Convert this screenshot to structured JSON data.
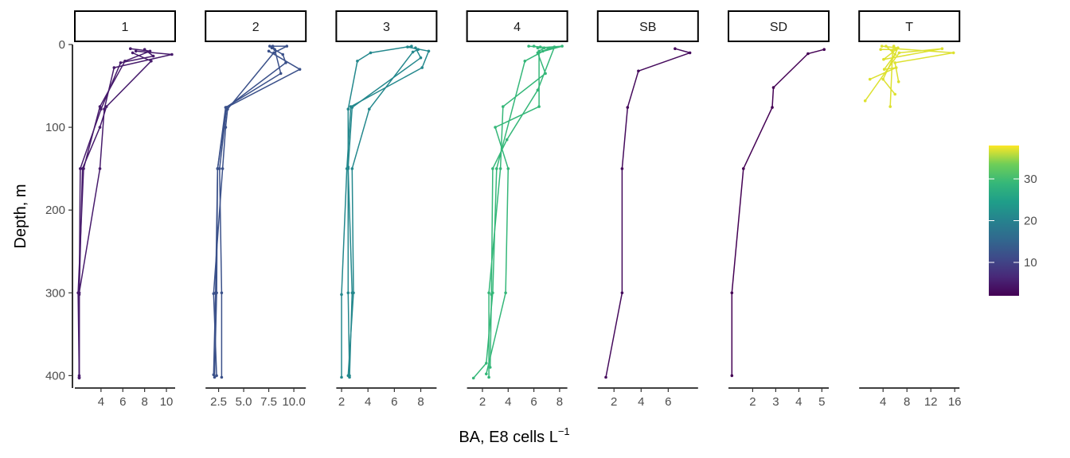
{
  "chart_data": {
    "type": "line",
    "title": "",
    "ylabel": "Depth, m",
    "xlabel": "BA, E8 cells L",
    "xlabel_superscript": "−1",
    "y_reversed": true,
    "ylim": [
      0,
      415
    ],
    "y_ticks": [
      0,
      100,
      200,
      300,
      400
    ],
    "grid": false,
    "color_scale": {
      "palette": "viridis",
      "min": 2,
      "max": 38,
      "ticks": [
        10,
        20,
        30
      ],
      "position": "right"
    },
    "panels": [
      {
        "label": "1",
        "xlim": [
          1.6,
          10.8
        ],
        "x_ticks": [
          4,
          6,
          8,
          10
        ],
        "series": [
          {
            "color_value": 5,
            "points": [
              [
                6.7,
                5
              ],
              [
                8.5,
                8
              ],
              [
                6.2,
                20
              ],
              [
                3.9,
                75
              ],
              [
                2.4,
                150
              ],
              [
                1.9,
                300
              ],
              [
                2.0,
                403
              ]
            ]
          },
          {
            "color_value": 5,
            "points": [
              [
                7.2,
                8
              ],
              [
                10.5,
                12
              ],
              [
                5.2,
                28
              ],
              [
                4.3,
                78
              ],
              [
                3.9,
                150
              ],
              [
                2.0,
                300
              ],
              [
                2.0,
                402
              ]
            ]
          },
          {
            "color_value": 5,
            "points": [
              [
                8.0,
                6
              ],
              [
                8.8,
                14
              ],
              [
                5.8,
                22
              ],
              [
                4.0,
                78
              ],
              [
                2.1,
                150
              ],
              [
                2.0,
                302
              ],
              [
                2.0,
                400
              ]
            ]
          },
          {
            "color_value": 5,
            "points": [
              [
                6.9,
                10
              ],
              [
                8.6,
                20
              ],
              [
                4.5,
                75
              ],
              [
                3.9,
                100
              ],
              [
                2.3,
                150
              ],
              [
                2.0,
                300
              ],
              [
                2.0,
                402
              ]
            ]
          }
        ]
      },
      {
        "label": "2",
        "xlim": [
          1.2,
          11.2
        ],
        "x_ticks": [
          2.5,
          5.0,
          7.5,
          10.0
        ],
        "x_tick_labels": [
          "2.5",
          "5.0",
          "7.5",
          "10.0"
        ],
        "series": [
          {
            "color_value": 12,
            "points": [
              [
                7.6,
                2
              ],
              [
                9.3,
                2
              ],
              [
                8.0,
                10
              ],
              [
                3.4,
                78
              ],
              [
                3.2,
                100
              ],
              [
                2.9,
                150
              ],
              [
                2.0,
                301
              ],
              [
                2.3,
                400
              ]
            ]
          },
          {
            "color_value": 12,
            "points": [
              [
                7.8,
                4
              ],
              [
                8.9,
                12
              ],
              [
                9.2,
                22
              ],
              [
                3.3,
                76
              ],
              [
                2.4,
                150
              ],
              [
                2.2,
                300
              ],
              [
                2.0,
                399
              ]
            ]
          },
          {
            "color_value": 12,
            "points": [
              [
                7.5,
                8
              ],
              [
                10.6,
                30
              ],
              [
                3.3,
                76
              ],
              [
                2.6,
                150
              ],
              [
                2.8,
                300
              ],
              [
                2.8,
                402
              ]
            ]
          },
          {
            "color_value": 12,
            "points": [
              [
                7.9,
                2
              ],
              [
                8.1,
                6
              ],
              [
                8.7,
                35
              ],
              [
                3.2,
                76
              ],
              [
                2.4,
                150
              ],
              [
                2.3,
                300
              ],
              [
                2.1,
                402
              ]
            ]
          }
        ]
      },
      {
        "label": "3",
        "xlim": [
          1.6,
          9.2
        ],
        "x_ticks": [
          2,
          4,
          6,
          8
        ],
        "series": [
          {
            "color_value": 21,
            "points": [
              [
                7.0,
                3
              ],
              [
                8.6,
                8
              ],
              [
                8.1,
                28
              ],
              [
                2.7,
                75
              ],
              [
                2.4,
                150
              ],
              [
                2.0,
                302
              ],
              [
                2.0,
                402
              ]
            ]
          },
          {
            "color_value": 21,
            "points": [
              [
                7.3,
                2
              ],
              [
                4.2,
                10
              ],
              [
                3.2,
                20
              ],
              [
                2.5,
                78
              ],
              [
                2.5,
                150
              ],
              [
                2.8,
                300
              ],
              [
                2.6,
                402
              ]
            ]
          },
          {
            "color_value": 21,
            "points": [
              [
                7.6,
                4
              ],
              [
                8.0,
                16
              ],
              [
                2.8,
                76
              ],
              [
                2.5,
                148
              ],
              [
                2.5,
                300
              ],
              [
                2.6,
                400
              ]
            ]
          },
          {
            "color_value": 21,
            "points": [
              [
                7.8,
                6
              ],
              [
                7.4,
                9
              ],
              [
                4.1,
                78
              ],
              [
                2.8,
                150
              ],
              [
                2.9,
                300
              ],
              [
                2.5,
                400
              ]
            ]
          }
        ]
      },
      {
        "label": "4",
        "xlim": [
          0.8,
          8.6
        ],
        "x_ticks": [
          2,
          4,
          6,
          8
        ],
        "series": [
          {
            "color_value": 29,
            "points": [
              [
                5.6,
                2
              ],
              [
                6.5,
                3
              ],
              [
                7.2,
                4
              ],
              [
                5.3,
                20
              ],
              [
                3.1,
                150
              ],
              [
                2.8,
                300
              ],
              [
                2.3,
                385
              ],
              [
                1.3,
                403
              ]
            ]
          },
          {
            "color_value": 29,
            "points": [
              [
                6.3,
                4
              ],
              [
                8.2,
                2
              ],
              [
                6.3,
                10
              ],
              [
                6.9,
                35
              ],
              [
                3.6,
                75
              ],
              [
                3.4,
                150
              ],
              [
                2.5,
                300
              ],
              [
                2.5,
                402
              ]
            ]
          },
          {
            "color_value": 29,
            "points": [
              [
                6.0,
                2
              ],
              [
                6.8,
                4
              ],
              [
                6.4,
                8
              ],
              [
                6.4,
                75
              ],
              [
                3.0,
                100
              ],
              [
                4.0,
                150
              ],
              [
                3.8,
                300
              ],
              [
                2.3,
                398
              ]
            ]
          },
          {
            "color_value": 29,
            "points": [
              [
                6.7,
                8
              ],
              [
                7.6,
                3
              ],
              [
                6.3,
                55
              ],
              [
                3.9,
                115
              ],
              [
                2.8,
                150
              ],
              [
                2.7,
                302
              ],
              [
                2.6,
                390
              ]
            ]
          }
        ]
      },
      {
        "label": "SB",
        "xlim": [
          0.8,
          8.2
        ],
        "x_ticks": [
          2,
          4,
          6
        ],
        "series": [
          {
            "color_value": 3,
            "points": [
              [
                6.5,
                5
              ],
              [
                7.6,
                10
              ],
              [
                3.8,
                32
              ],
              [
                3.0,
                76
              ],
              [
                2.6,
                150
              ],
              [
                2.6,
                300
              ],
              [
                1.4,
                402
              ]
            ]
          }
        ]
      },
      {
        "label": "SD",
        "xlim": [
          0.95,
          5.3
        ],
        "x_ticks": [
          2,
          3,
          4,
          5
        ],
        "series": [
          {
            "color_value": 2,
            "points": [
              [
                5.1,
                6
              ],
              [
                4.4,
                11
              ],
              [
                2.9,
                52
              ],
              [
                2.85,
                76
              ],
              [
                1.6,
                150
              ],
              [
                1.1,
                300
              ],
              [
                1.1,
                400
              ]
            ]
          }
        ]
      },
      {
        "label": "T",
        "xlim": [
          0,
          16.8
        ],
        "x_ticks": [
          4,
          8,
          12,
          16
        ],
        "series": [
          {
            "color_value": 37,
            "points": [
              [
                3.8,
                2
              ],
              [
                6.5,
                4
              ],
              [
                4.0,
                42
              ],
              [
                6.0,
                60
              ]
            ]
          },
          {
            "color_value": 37,
            "points": [
              [
                5.8,
                2
              ],
              [
                5.6,
                8
              ],
              [
                5.2,
                75
              ]
            ]
          },
          {
            "color_value": 37,
            "points": [
              [
                6.1,
                5
              ],
              [
                15.8,
                10
              ],
              [
                6.0,
                22
              ],
              [
                6.6,
                45
              ]
            ]
          },
          {
            "color_value": 37,
            "points": [
              [
                3.6,
                6
              ],
              [
                6.2,
                6
              ],
              [
                4.1,
                18
              ],
              [
                13.9,
                5
              ],
              [
                6.7,
                10
              ],
              [
                1.0,
                68
              ]
            ]
          },
          {
            "color_value": 37,
            "points": [
              [
                4.5,
                2
              ],
              [
                6.0,
                12
              ],
              [
                4.2,
                30
              ],
              [
                6.2,
                28
              ],
              [
                1.8,
                42
              ]
            ]
          }
        ]
      }
    ]
  }
}
